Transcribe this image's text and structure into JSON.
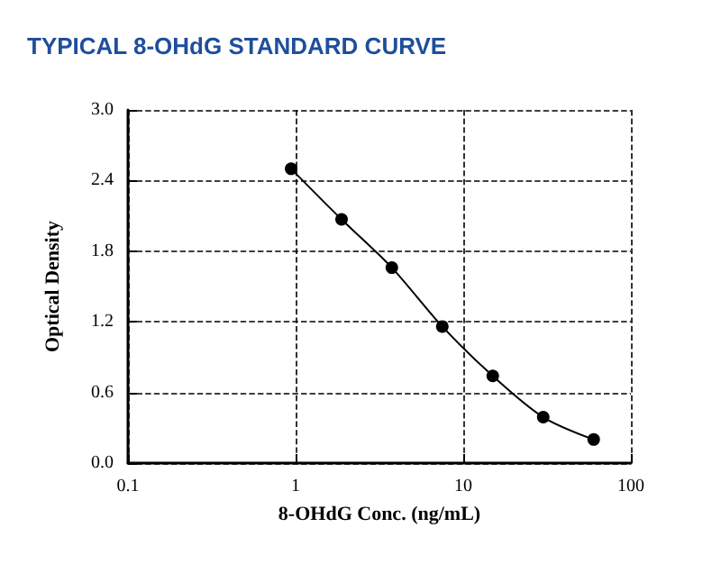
{
  "chart_data": {
    "type": "line",
    "title": "TYPICAL 8-OHdG STANDARD CURVE",
    "xlabel": "8-OHdG Conc. (ng/mL)",
    "ylabel": "Optical Density",
    "x": [
      0.94,
      1.88,
      3.75,
      7.5,
      15,
      30,
      60
    ],
    "series": [
      {
        "color": "#000000",
        "values": [
          2.5,
          2.07,
          1.66,
          1.16,
          0.74,
          0.39,
          0.2
        ]
      }
    ],
    "log": "x",
    "xlim": [
      0.1,
      100
    ],
    "xticks": [
      0.1,
      1,
      10,
      100
    ],
    "ylim": [
      0,
      3.0
    ],
    "yticks": [
      {
        "value": 0,
        "label": "0.0"
      },
      {
        "value": 0.6,
        "label": "0.6"
      },
      {
        "value": 1.2,
        "label": "1.2"
      },
      {
        "value": 1.8,
        "label": "1.8"
      },
      {
        "value": 2.4,
        "label": "2.4"
      },
      {
        "value": 3.0,
        "label": "3.0"
      }
    ],
    "grid": true,
    "marker": "circle",
    "line_style": "solid"
  }
}
